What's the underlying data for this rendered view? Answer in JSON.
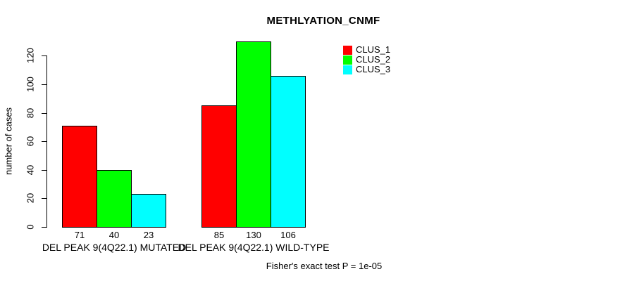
{
  "page": {
    "background": "#FFFFFF",
    "text_color": "#000000"
  },
  "chart_data": {
    "type": "bar",
    "title": "METHLYATION_CNMF",
    "ylabel": "number of cases",
    "xlabel": "",
    "ylim": [
      0,
      130
    ],
    "yticks": [
      0,
      20,
      40,
      60,
      80,
      100,
      120
    ],
    "categories": [
      "DEL PEAK 9(4Q22.1) MUTATED",
      "DEL PEAK 9(4Q22.1) WILD-TYPE"
    ],
    "series": [
      {
        "name": "CLUS_1",
        "color": "#FF0000",
        "values": [
          71,
          85
        ]
      },
      {
        "name": "CLUS_2",
        "color": "#00FF00",
        "values": [
          40,
          130
        ]
      },
      {
        "name": "CLUS_3",
        "color": "#00FFFF",
        "values": [
          23,
          106
        ]
      }
    ],
    "bar_value_labels_shown": true,
    "bar_border_color": "#000000",
    "grid": false,
    "legend_position": "top-right",
    "annotation": "Fisher's exact test P = 1e-05"
  }
}
